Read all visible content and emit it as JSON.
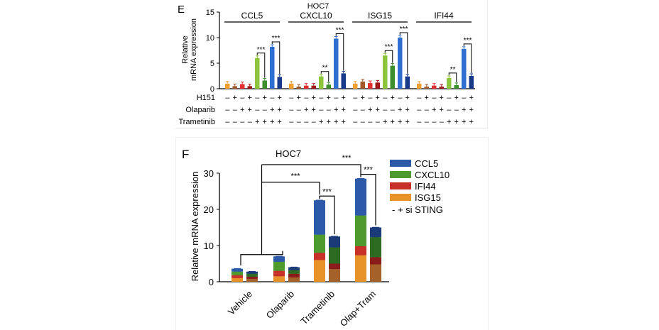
{
  "panel_e": {
    "label": "E",
    "title": "HOC7",
    "ylabel_line1": "Relative",
    "ylabel_line2": "mRNA expression",
    "row_labels": [
      "H151",
      "Olaparib",
      "Trametinib"
    ],
    "row_symbols": [
      [
        "–",
        "+",
        "–",
        "+",
        "–",
        "+",
        "–",
        "+"
      ],
      [
        "–",
        "–",
        "+",
        "+",
        "–",
        "–",
        "+",
        "+"
      ],
      [
        "–",
        "–",
        "–",
        "–",
        "+",
        "+",
        "+",
        "+"
      ]
    ],
    "colors": [
      "#f0a030",
      "#a05a2c",
      "#e03030",
      "#a01818",
      "#8cc43c",
      "#3d8f2e",
      "#2f6fd0",
      "#173a8a"
    ]
  },
  "panel_f": {
    "label": "F",
    "title": "HOC7",
    "legend": [
      {
        "label": "CCL5",
        "color": "#2c5aa8"
      },
      {
        "label": "CXCL10",
        "color": "#4f9a2e"
      },
      {
        "label": "IFI44",
        "color": "#c8302a"
      },
      {
        "label": "ISG15",
        "color": "#e8922a"
      }
    ],
    "legend_sirna": "-  + si STING",
    "dark_colors": {
      "CCL5": "#1b3a78",
      "CXCL10": "#2e6b22",
      "IFI44": "#8a1c1c",
      "ISG15": "#a4622a"
    }
  },
  "chart_data": [
    {
      "type": "bar",
      "title": "HOC7",
      "ylabel": "Relative mRNA expression",
      "ylim": [
        0,
        15
      ],
      "yticks": [
        0,
        5,
        10,
        15
      ],
      "groups": [
        "CCL5",
        "CXCL10",
        "ISG15",
        "IFI44"
      ],
      "conditions": [
        {
          "H151": "–",
          "Olaparib": "–",
          "Trametinib": "–"
        },
        {
          "H151": "+",
          "Olaparib": "–",
          "Trametinib": "–"
        },
        {
          "H151": "–",
          "Olaparib": "+",
          "Trametinib": "–"
        },
        {
          "H151": "+",
          "Olaparib": "+",
          "Trametinib": "–"
        },
        {
          "H151": "–",
          "Olaparib": "–",
          "Trametinib": "+"
        },
        {
          "H151": "+",
          "Olaparib": "–",
          "Trametinib": "+"
        },
        {
          "H151": "–",
          "Olaparib": "+",
          "Trametinib": "+"
        },
        {
          "H151": "+",
          "Olaparib": "+",
          "Trametinib": "+"
        }
      ],
      "values": {
        "CCL5": [
          1.0,
          0.5,
          0.9,
          0.5,
          6.0,
          1.6,
          8.2,
          2.3
        ],
        "CXCL10": [
          1.0,
          0.4,
          0.6,
          0.6,
          2.4,
          0.8,
          9.8,
          3.0
        ],
        "ISG15": [
          1.0,
          1.4,
          1.1,
          1.2,
          6.5,
          4.5,
          10.0,
          2.4
        ],
        "IFI44": [
          1.0,
          0.4,
          0.6,
          0.4,
          2.1,
          0.7,
          7.8,
          2.5
        ]
      },
      "significance": {
        "CCL5": [
          {
            "pair": [
              4,
              5
            ],
            "label": "***"
          },
          {
            "pair": [
              6,
              7
            ],
            "label": "***"
          }
        ],
        "CXCL10": [
          {
            "pair": [
              4,
              5
            ],
            "label": "**"
          },
          {
            "pair": [
              6,
              7
            ],
            "label": "***"
          }
        ],
        "ISG15": [
          {
            "pair": [
              4,
              5
            ],
            "label": "***"
          },
          {
            "pair": [
              6,
              7
            ],
            "label": "***"
          }
        ],
        "IFI44": [
          {
            "pair": [
              4,
              5
            ],
            "label": "**"
          },
          {
            "pair": [
              6,
              7
            ],
            "label": "***"
          }
        ]
      }
    },
    {
      "type": "bar",
      "stacked": true,
      "title": "HOC7",
      "ylabel": "Relative mRNA expression",
      "ylim": [
        0,
        30
      ],
      "yticks": [
        0,
        10,
        20,
        30
      ],
      "categories": [
        "Vehicle",
        "Olaparib",
        "Trametinib",
        "Olap+Tram"
      ],
      "series_order_bottom_to_top": [
        "ISG15",
        "IFI44",
        "CXCL10",
        "CCL5"
      ],
      "minus_si_sting": {
        "ISG15": [
          1.0,
          1.5,
          6.0,
          7.3
        ],
        "IFI44": [
          0.8,
          1.5,
          2.0,
          2.5
        ],
        "CXCL10": [
          1.0,
          2.5,
          5.0,
          8.5
        ],
        "CCL5": [
          0.8,
          1.5,
          9.5,
          10.2
        ]
      },
      "plus_si_sting": {
        "ISG15": [
          0.8,
          1.2,
          3.5,
          4.8
        ],
        "IFI44": [
          0.6,
          1.0,
          1.5,
          2.0
        ],
        "CXCL10": [
          0.8,
          1.0,
          4.5,
          5.5
        ],
        "CCL5": [
          0.6,
          0.8,
          3.0,
          2.7
        ]
      },
      "significance": [
        {
          "between": [
            "Trametinib -",
            "Trametinib +"
          ],
          "label": "***"
        },
        {
          "between": [
            "Olap+Tram -",
            "Olap+Tram +"
          ],
          "label": "***"
        },
        {
          "between": [
            "Vehicle/Olaparib",
            "Trametinib"
          ],
          "label": "***"
        },
        {
          "between": [
            "Vehicle/Olaparib",
            "Olap+Tram"
          ],
          "label": "***"
        }
      ]
    }
  ]
}
